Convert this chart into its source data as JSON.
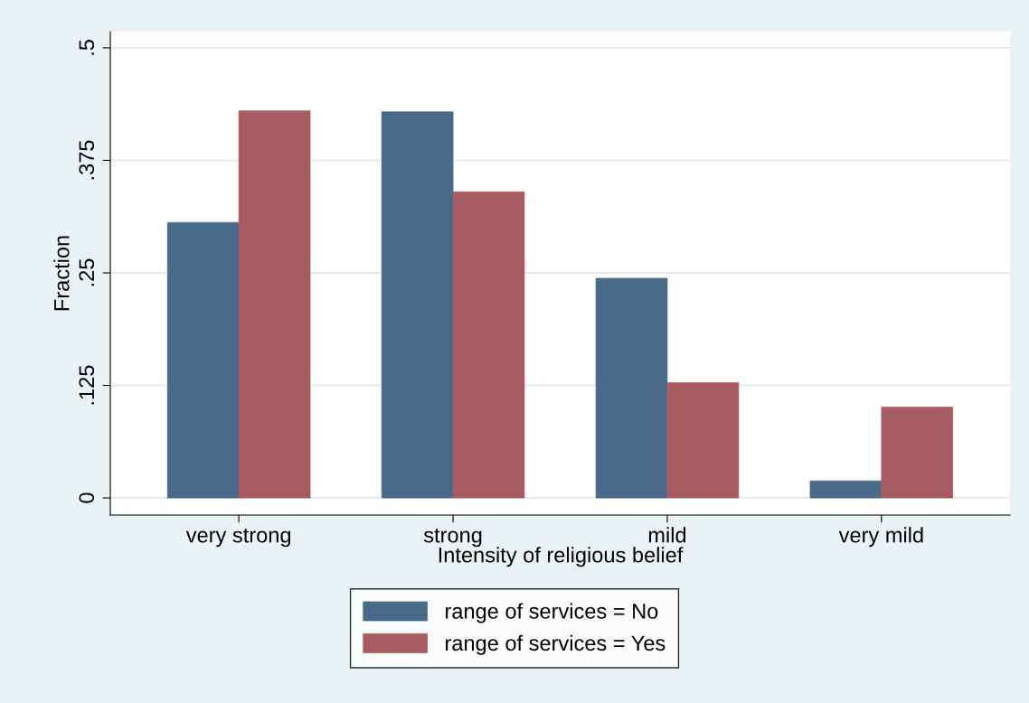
{
  "chart_data": {
    "type": "bar",
    "xlabel": "Intensity of religious belief",
    "ylabel": "Fraction",
    "categories": [
      "very strong",
      "strong",
      "mild",
      "very mild"
    ],
    "series": [
      {
        "name": "range of services = No",
        "color": "#4a6a8c",
        "values": [
          0.306,
          0.429,
          0.244,
          0.019
        ]
      },
      {
        "name": "range of services = Yes",
        "color": "#a65c60",
        "values": [
          0.43,
          0.34,
          0.128,
          0.101
        ]
      }
    ],
    "ylim": [
      -0.019,
      0.518
    ],
    "yticks": [
      0,
      {
        "value": 0.125,
        "label": ".125"
      },
      {
        "value": 0.25,
        "label": ".25"
      },
      {
        "value": 0.375,
        "label": ".375"
      },
      {
        "value": 0.5,
        "label": ".5"
      }
    ],
    "grid": "y",
    "legend": "bottom"
  }
}
